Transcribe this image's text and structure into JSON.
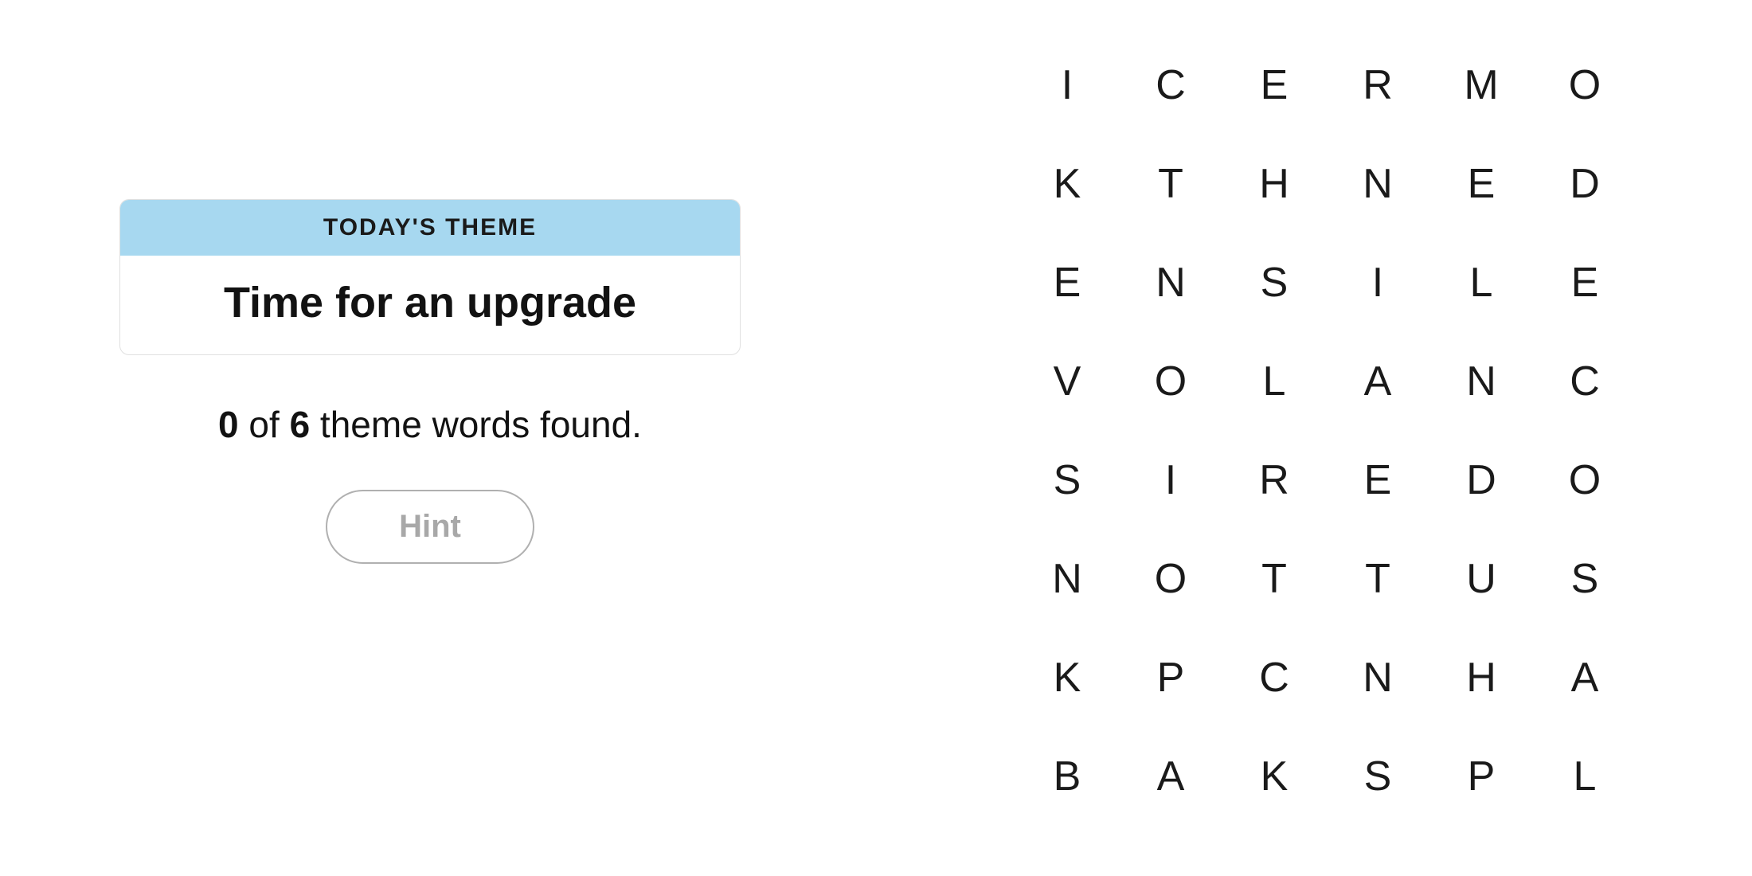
{
  "theme": {
    "header_label": "TODAY'S THEME",
    "title": "Time for an upgrade",
    "header_bg_color": "#a7d8f0",
    "card_border_color": "#e0e0e0",
    "card_bg_color": "#ffffff"
  },
  "progress": {
    "found": "0",
    "separator": " of ",
    "total": "6",
    "suffix": " theme words found."
  },
  "hint": {
    "label": "Hint",
    "border_color": "#b0b0b0",
    "text_color": "#a8a8a8"
  },
  "grid": {
    "rows": 8,
    "cols": 6,
    "cell_font_size": 52,
    "text_color": "#1a1a1a",
    "letters": [
      [
        "I",
        "C",
        "E",
        "R",
        "M",
        "O"
      ],
      [
        "K",
        "T",
        "H",
        "N",
        "E",
        "D"
      ],
      [
        "E",
        "N",
        "S",
        "I",
        "L",
        "E"
      ],
      [
        "V",
        "O",
        "L",
        "A",
        "N",
        "C"
      ],
      [
        "S",
        "I",
        "R",
        "E",
        "D",
        "O"
      ],
      [
        "N",
        "O",
        "T",
        "T",
        "U",
        "S"
      ],
      [
        "K",
        "P",
        "C",
        "N",
        "H",
        "A"
      ],
      [
        "B",
        "A",
        "K",
        "S",
        "P",
        "L"
      ]
    ]
  },
  "colors": {
    "background": "#ffffff",
    "text_primary": "#121212"
  }
}
